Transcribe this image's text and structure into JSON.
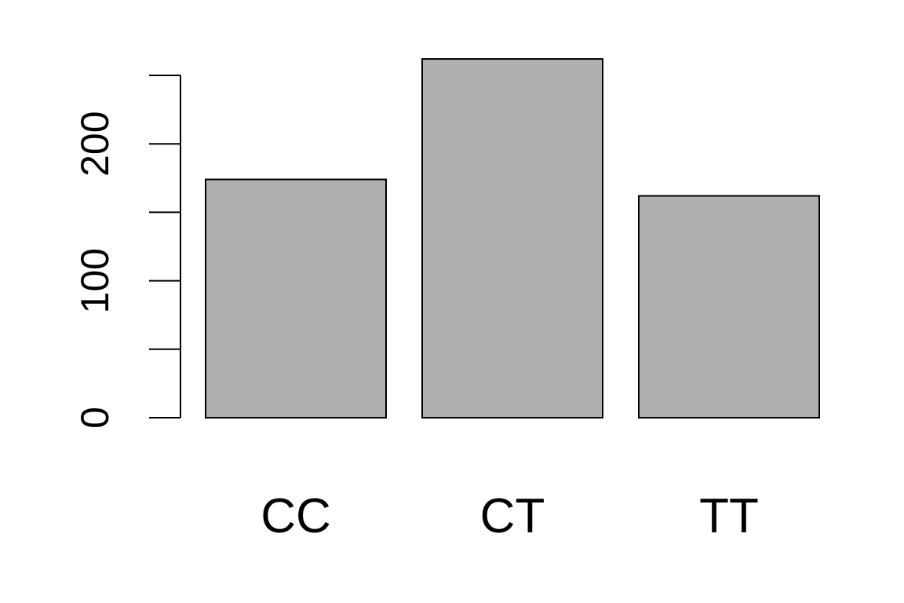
{
  "chart_data": {
    "type": "bar",
    "title": "",
    "xlabel": "",
    "ylabel": "",
    "categories": [
      "CC",
      "CT",
      "TT"
    ],
    "values": [
      174,
      262,
      162
    ],
    "ylim": [
      0,
      250
    ],
    "yticks": [
      0,
      50,
      100,
      150,
      200,
      250
    ],
    "ytick_labels": [
      "0",
      "",
      "100",
      "",
      "200",
      ""
    ],
    "grid": false,
    "legend": "none",
    "colors": {
      "bar_fill": "#b0b0b0",
      "bar_stroke": "#000000",
      "axis": "#000000",
      "background": "#ffffff"
    }
  }
}
